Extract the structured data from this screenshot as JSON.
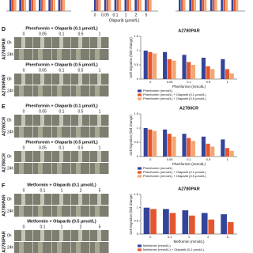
{
  "top_strip": {
    "x_ticks": [
      "0",
      "0.05",
      "0.1",
      "1",
      "2",
      "5"
    ],
    "x_label": "Olaparib (µmol/L)"
  },
  "panels": [
    {
      "letter": "D",
      "blocks": [
        {
          "title": "Phenformin + Olaparib (0.1 µmol/L)",
          "doses": [
            "0",
            "0.05",
            "0.1",
            "0.5",
            "1"
          ],
          "cell_line": "A2780PAR",
          "times": [
            "0h",
            "24h"
          ]
        },
        {
          "title": "Phenformin + Olaparib (0.5 µmol/L)",
          "doses": [
            "0",
            "0.05",
            "0.1",
            "0.5",
            "1"
          ],
          "cell_line": "A2780PAR",
          "times": [
            "0h",
            "24h"
          ]
        }
      ]
    },
    {
      "letter": "E",
      "blocks": [
        {
          "title": "Phenformin + Olaparib (0.1 µmol/L)",
          "doses": [
            "0",
            "0.05",
            "0.1",
            "0.5",
            "1"
          ],
          "cell_line": "A2780CR",
          "times": [
            "0h",
            "24h"
          ]
        },
        {
          "title": "Phenformin + Olaparib (0.5 µmol/L)",
          "doses": [
            "0",
            "0.05",
            "0.1",
            "0.5",
            "1"
          ],
          "cell_line": "A2780CR",
          "times": [
            "0h",
            "24h"
          ]
        }
      ]
    },
    {
      "letter": "F",
      "blocks": [
        {
          "title": "Metformin + Olaparib (0.1 µmol/L)",
          "doses": [
            "0",
            "0.1",
            "1",
            "2",
            "5"
          ],
          "cell_line": "A2780PAR",
          "times": [
            "0h",
            "24h"
          ]
        },
        {
          "title": "Metformin + Olaparib (0.5 µmol/L)",
          "doses": [
            "0",
            "0.1",
            "1",
            "2",
            "5"
          ],
          "cell_line": "A2780PAR",
          "times": [
            "0h",
            "24h"
          ]
        }
      ]
    }
  ],
  "chart_data": [
    {
      "type": "bar",
      "title": "A2780PAR",
      "y_label": "Cell migration (fold change)",
      "x_label": "Phenformin (mmol/L)",
      "categories": [
        "0",
        "0.05",
        "0.1",
        "0.5",
        "1"
      ],
      "ylim": [
        0,
        1.5
      ],
      "yticks": [
        0,
        0.5,
        1,
        1.5
      ],
      "series": [
        {
          "name": "Phenformin (mmol/L)",
          "color": "#34449a",
          "values": [
            1,
            0.95,
            0.85,
            0.75,
            0.7
          ]
        },
        {
          "name": "Phenformin (mmol/L) + Olaparib (0.1 µmol/L)",
          "color": "#e4572e",
          "values": [
            0.95,
            0.7,
            0.6,
            0.45,
            0.35
          ]
        },
        {
          "name": "Phenformin (mmol/L) + Olaparib (0.5 µmol/L)",
          "color": "#f2a772",
          "values": [
            0.9,
            0.65,
            0.5,
            0.35,
            0.2
          ]
        }
      ]
    },
    {
      "type": "bar",
      "title": "A2780CR",
      "y_label": "Cell migration (fold change)",
      "x_label": "Phenformin (mmol/L)",
      "categories": [
        "0",
        "0.05",
        "0.1",
        "0.5",
        "1"
      ],
      "ylim": [
        0,
        1.5
      ],
      "yticks": [
        0,
        0.5,
        1,
        1.5
      ],
      "series": [
        {
          "name": "Phenformin (mmol/L)",
          "color": "#34449a",
          "values": [
            1,
            0.95,
            0.8,
            0.7,
            0.6
          ]
        },
        {
          "name": "Phenformin (mmol/L) + Olaparib (0.1 µmol/L)",
          "color": "#e4572e",
          "values": [
            0.95,
            0.8,
            0.65,
            0.45,
            0.3
          ]
        },
        {
          "name": "Phenformin (mmol/L) + Olaparib (0.5 µmol/L)",
          "color": "#f2a772",
          "values": [
            0.9,
            0.7,
            0.55,
            0.35,
            0.2
          ]
        }
      ]
    },
    {
      "type": "bar",
      "title": "A2780PAR",
      "y_label": "Cell migration (fold change)",
      "x_label": "Metformin (mmol/L)",
      "categories": [
        "0",
        "0.1",
        "1",
        "2",
        "5"
      ],
      "ylim": [
        0,
        1.5
      ],
      "yticks": [
        0,
        0.5,
        1,
        1.5
      ],
      "series": [
        {
          "name": "Metformin (mmol/L)",
          "color": "#34449a",
          "values": [
            1,
            0.95,
            0.9,
            0.8,
            0.75
          ]
        },
        {
          "name": "Metformin (mmol/L) + Olaparib (0.1 µmol/L)",
          "color": "#e4572e",
          "values": [
            0.95,
            0.8,
            0.7,
            0.55,
            0.45
          ]
        }
      ]
    }
  ]
}
